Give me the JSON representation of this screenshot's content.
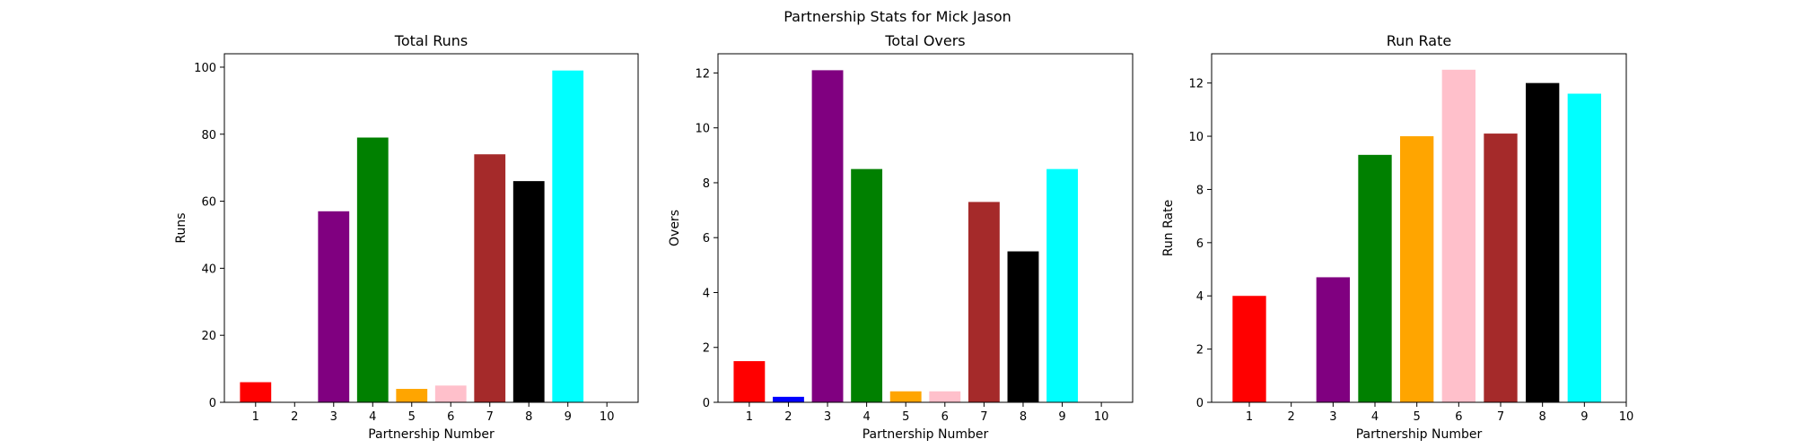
{
  "figure": {
    "title": "Partnership Stats for Mick Jason"
  },
  "chart_data": [
    {
      "type": "bar",
      "title": "Total Runs",
      "xlabel": "Partnership Number",
      "ylabel": "Runs",
      "categories": [
        1,
        2,
        3,
        4,
        5,
        6,
        7,
        8,
        9,
        10
      ],
      "values": [
        6,
        0,
        57,
        79,
        4,
        5,
        74,
        66,
        99,
        0
      ],
      "colors": [
        "#ff0000",
        "#0000ff",
        "#800080",
        "#008000",
        "#ffa500",
        "#ffc0cb",
        "#a52a2a",
        "#000000",
        "#00ffff",
        "#808080"
      ],
      "ylim": [
        0,
        104
      ],
      "yticks": [
        0,
        20,
        40,
        60,
        80,
        100
      ],
      "xlim": [
        0.2,
        10.8
      ],
      "grid": false
    },
    {
      "type": "bar",
      "title": "Total Overs",
      "xlabel": "Partnership Number",
      "ylabel": "Overs",
      "categories": [
        1,
        2,
        3,
        4,
        5,
        6,
        7,
        8,
        9,
        10
      ],
      "values": [
        1.5,
        0.2,
        12.1,
        8.5,
        0.4,
        0.4,
        7.3,
        5.5,
        8.5,
        0
      ],
      "colors": [
        "#ff0000",
        "#0000ff",
        "#800080",
        "#008000",
        "#ffa500",
        "#ffc0cb",
        "#a52a2a",
        "#000000",
        "#00ffff",
        "#808080"
      ],
      "ylim": [
        0,
        12.7
      ],
      "yticks": [
        0,
        2,
        4,
        6,
        8,
        10,
        12
      ],
      "xlim": [
        0.2,
        10.8
      ],
      "grid": false
    },
    {
      "type": "bar",
      "title": "Run Rate",
      "xlabel": "Partnership Number",
      "ylabel": "Run Rate",
      "categories": [
        1,
        2,
        3,
        4,
        5,
        6,
        7,
        8,
        9
      ],
      "tick_labels": [
        1,
        2,
        3,
        4,
        5,
        6,
        7,
        8,
        9,
        10
      ],
      "values": [
        4.0,
        0,
        4.7,
        9.3,
        10.0,
        12.5,
        10.1,
        12.0,
        11.6
      ],
      "colors": [
        "#ff0000",
        "#0000ff",
        "#800080",
        "#008000",
        "#ffa500",
        "#ffc0cb",
        "#a52a2a",
        "#000000",
        "#00ffff"
      ],
      "ylim": [
        0,
        13.1
      ],
      "yticks": [
        0,
        2,
        4,
        6,
        8,
        10,
        12
      ],
      "xlim": [
        0.1,
        10.0
      ],
      "grid": false
    }
  ]
}
